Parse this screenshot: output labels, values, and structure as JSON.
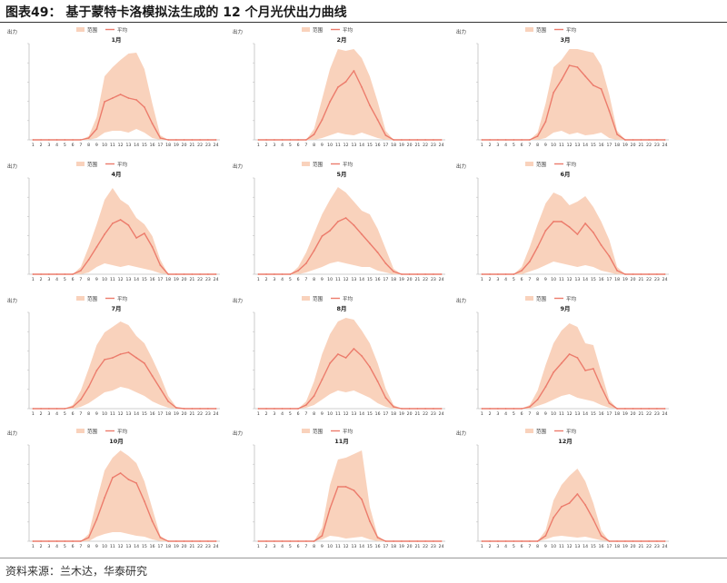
{
  "title": "图表49：  基于蒙特卡洛模拟法生成的 12 个月光伏出力曲线",
  "source": "资料来源：兰木达，华泰研究",
  "colors": {
    "band": "#f9d2bc",
    "line": "#ec7c6c",
    "axis": "#bfbfbf",
    "text": "#333333"
  },
  "chart_data": [
    {
      "type": "area",
      "title": "1月",
      "ylabel": "出力",
      "legend": [
        "范围",
        "平均"
      ],
      "legend_position": "top",
      "x": [
        1,
        2,
        3,
        4,
        5,
        6,
        7,
        8,
        9,
        10,
        11,
        12,
        13,
        14,
        15,
        16,
        17,
        18,
        19,
        20,
        21,
        22,
        23,
        24
      ],
      "mean": [
        0,
        0,
        0,
        0,
        0,
        0,
        0,
        0.02,
        0.12,
        0.42,
        0.46,
        0.5,
        0.46,
        0.44,
        0.36,
        0.18,
        0.02,
        0,
        0,
        0,
        0,
        0,
        0,
        0
      ],
      "upper": [
        0,
        0,
        0,
        0,
        0,
        0,
        0,
        0.04,
        0.25,
        0.7,
        0.8,
        0.88,
        0.95,
        0.96,
        0.78,
        0.4,
        0.05,
        0,
        0,
        0,
        0,
        0,
        0,
        0
      ],
      "lower": [
        0,
        0,
        0,
        0,
        0,
        0,
        0,
        0,
        0.02,
        0.08,
        0.1,
        0.1,
        0.08,
        0.12,
        0.08,
        0.02,
        0,
        0,
        0,
        0,
        0,
        0,
        0,
        0
      ]
    },
    {
      "type": "area",
      "title": "2月",
      "ylabel": "出力",
      "legend": [
        "范围",
        "平均"
      ],
      "legend_position": "top",
      "x": [
        1,
        2,
        3,
        4,
        5,
        6,
        7,
        8,
        9,
        10,
        11,
        12,
        13,
        14,
        15,
        16,
        17,
        18,
        19,
        20,
        21,
        22,
        23,
        24
      ],
      "mean": [
        0,
        0,
        0,
        0,
        0,
        0,
        0,
        0.06,
        0.22,
        0.42,
        0.58,
        0.64,
        0.76,
        0.58,
        0.38,
        0.22,
        0.05,
        0,
        0,
        0,
        0,
        0,
        0,
        0
      ],
      "upper": [
        0,
        0,
        0,
        0,
        0,
        0,
        0,
        0.12,
        0.45,
        0.78,
        1.0,
        0.98,
        1.0,
        0.9,
        0.7,
        0.42,
        0.1,
        0,
        0,
        0,
        0,
        0,
        0,
        0
      ],
      "lower": [
        0,
        0,
        0,
        0,
        0,
        0,
        0,
        0,
        0.02,
        0.05,
        0.08,
        0.06,
        0.05,
        0.08,
        0.05,
        0.02,
        0,
        0,
        0,
        0,
        0,
        0,
        0,
        0
      ]
    },
    {
      "type": "area",
      "title": "3月",
      "ylabel": "出力",
      "legend": [
        "范围",
        "平均"
      ],
      "legend_position": "top",
      "x": [
        1,
        2,
        3,
        4,
        5,
        6,
        7,
        8,
        9,
        10,
        11,
        12,
        13,
        14,
        15,
        16,
        17,
        18,
        19,
        20,
        21,
        22,
        23,
        24
      ],
      "mean": [
        0,
        0,
        0,
        0,
        0,
        0,
        0,
        0.04,
        0.2,
        0.52,
        0.66,
        0.82,
        0.8,
        0.7,
        0.6,
        0.56,
        0.32,
        0.06,
        0,
        0,
        0,
        0,
        0,
        0
      ],
      "upper": [
        0,
        0,
        0,
        0,
        0,
        0,
        0,
        0.08,
        0.4,
        0.8,
        0.88,
        1.0,
        1.0,
        0.98,
        0.96,
        0.82,
        0.5,
        0.1,
        0,
        0,
        0,
        0,
        0,
        0
      ],
      "lower": [
        0,
        0,
        0,
        0,
        0,
        0,
        0,
        0,
        0.02,
        0.08,
        0.1,
        0.06,
        0.08,
        0.05,
        0.06,
        0.08,
        0.02,
        0,
        0,
        0,
        0,
        0,
        0,
        0
      ]
    },
    {
      "type": "area",
      "title": "4月",
      "ylabel": "出力",
      "legend": [
        "范围",
        "平均"
      ],
      "legend_position": "top",
      "x": [
        1,
        2,
        3,
        4,
        5,
        6,
        7,
        8,
        9,
        10,
        11,
        12,
        13,
        14,
        15,
        16,
        17,
        18,
        19,
        20,
        21,
        22,
        23,
        24
      ],
      "mean": [
        0,
        0,
        0,
        0,
        0,
        0,
        0.04,
        0.16,
        0.3,
        0.44,
        0.56,
        0.6,
        0.54,
        0.4,
        0.45,
        0.3,
        0.1,
        0,
        0,
        0,
        0,
        0,
        0,
        0
      ],
      "upper": [
        0,
        0,
        0,
        0,
        0,
        0,
        0.08,
        0.3,
        0.55,
        0.82,
        0.95,
        0.82,
        0.76,
        0.62,
        0.55,
        0.42,
        0.16,
        0,
        0,
        0,
        0,
        0,
        0,
        0
      ],
      "lower": [
        0,
        0,
        0,
        0,
        0,
        0,
        0,
        0.02,
        0.08,
        0.12,
        0.1,
        0.08,
        0.1,
        0.08,
        0.06,
        0.04,
        0.01,
        0,
        0,
        0,
        0,
        0,
        0,
        0
      ]
    },
    {
      "type": "area",
      "title": "5月",
      "ylabel": "出力",
      "legend": [
        "范围",
        "平均"
      ],
      "legend_position": "top",
      "x": [
        1,
        2,
        3,
        4,
        5,
        6,
        7,
        8,
        9,
        10,
        11,
        12,
        13,
        14,
        15,
        16,
        17,
        18,
        19,
        20,
        21,
        22,
        23,
        24
      ],
      "mean": [
        0,
        0,
        0,
        0,
        0,
        0.04,
        0.12,
        0.26,
        0.42,
        0.48,
        0.58,
        0.62,
        0.54,
        0.44,
        0.34,
        0.24,
        0.12,
        0.03,
        0,
        0,
        0,
        0,
        0,
        0
      ],
      "upper": [
        0,
        0,
        0,
        0,
        0,
        0.08,
        0.24,
        0.45,
        0.66,
        0.82,
        0.96,
        0.9,
        0.8,
        0.7,
        0.66,
        0.5,
        0.28,
        0.06,
        0,
        0,
        0,
        0,
        0,
        0
      ],
      "lower": [
        0,
        0,
        0,
        0,
        0,
        0,
        0.02,
        0.05,
        0.08,
        0.12,
        0.14,
        0.12,
        0.1,
        0.08,
        0.08,
        0.04,
        0.02,
        0,
        0,
        0,
        0,
        0,
        0,
        0
      ]
    },
    {
      "type": "area",
      "title": "6月",
      "ylabel": "出力",
      "legend": [
        "范围",
        "平均"
      ],
      "legend_position": "top",
      "x": [
        1,
        2,
        3,
        4,
        5,
        6,
        7,
        8,
        9,
        10,
        11,
        12,
        13,
        14,
        15,
        16,
        17,
        18,
        19,
        20,
        21,
        22,
        23,
        24
      ],
      "mean": [
        0,
        0,
        0,
        0,
        0,
        0.04,
        0.14,
        0.3,
        0.48,
        0.58,
        0.58,
        0.52,
        0.44,
        0.56,
        0.46,
        0.32,
        0.2,
        0.04,
        0,
        0,
        0,
        0,
        0,
        0
      ],
      "upper": [
        0,
        0,
        0,
        0,
        0,
        0.08,
        0.3,
        0.55,
        0.78,
        0.9,
        0.86,
        0.76,
        0.8,
        0.86,
        0.74,
        0.58,
        0.38,
        0.08,
        0,
        0,
        0,
        0,
        0,
        0
      ],
      "lower": [
        0,
        0,
        0,
        0,
        0,
        0,
        0.03,
        0.06,
        0.1,
        0.14,
        0.12,
        0.1,
        0.08,
        0.1,
        0.08,
        0.04,
        0.02,
        0,
        0,
        0,
        0,
        0,
        0,
        0
      ]
    },
    {
      "type": "area",
      "title": "7月",
      "ylabel": "出力",
      "legend": [
        "范围",
        "平均"
      ],
      "legend_position": "top",
      "x": [
        1,
        2,
        3,
        4,
        5,
        6,
        7,
        8,
        9,
        10,
        11,
        12,
        13,
        14,
        15,
        16,
        17,
        18,
        19,
        20,
        21,
        22,
        23,
        24
      ],
      "mean": [
        0,
        0,
        0,
        0,
        0,
        0.02,
        0.1,
        0.24,
        0.42,
        0.54,
        0.56,
        0.6,
        0.62,
        0.56,
        0.5,
        0.36,
        0.22,
        0.08,
        0.01,
        0,
        0,
        0,
        0,
        0
      ],
      "upper": [
        0,
        0,
        0,
        0,
        0,
        0.04,
        0.2,
        0.44,
        0.7,
        0.84,
        0.9,
        0.96,
        0.92,
        0.8,
        0.72,
        0.55,
        0.36,
        0.14,
        0.02,
        0,
        0,
        0,
        0,
        0
      ],
      "lower": [
        0,
        0,
        0,
        0,
        0,
        0,
        0.02,
        0.06,
        0.12,
        0.18,
        0.2,
        0.24,
        0.22,
        0.18,
        0.14,
        0.08,
        0.04,
        0.01,
        0,
        0,
        0,
        0,
        0,
        0
      ]
    },
    {
      "type": "area",
      "title": "8月",
      "ylabel": "出力",
      "legend": [
        "范围",
        "平均"
      ],
      "legend_position": "top",
      "x": [
        1,
        2,
        3,
        4,
        5,
        6,
        7,
        8,
        9,
        10,
        11,
        12,
        13,
        14,
        15,
        16,
        17,
        18,
        19,
        20,
        21,
        22,
        23,
        24
      ],
      "mean": [
        0,
        0,
        0,
        0,
        0,
        0,
        0.04,
        0.14,
        0.32,
        0.5,
        0.6,
        0.56,
        0.66,
        0.58,
        0.46,
        0.3,
        0.12,
        0.02,
        0,
        0,
        0,
        0,
        0,
        0
      ],
      "upper": [
        0,
        0,
        0,
        0,
        0,
        0,
        0.08,
        0.3,
        0.6,
        0.82,
        0.96,
        1.0,
        0.98,
        0.86,
        0.72,
        0.5,
        0.22,
        0.04,
        0,
        0,
        0,
        0,
        0,
        0
      ],
      "lower": [
        0,
        0,
        0,
        0,
        0,
        0,
        0.01,
        0.04,
        0.1,
        0.16,
        0.2,
        0.18,
        0.2,
        0.16,
        0.12,
        0.06,
        0.02,
        0,
        0,
        0,
        0,
        0,
        0,
        0
      ]
    },
    {
      "type": "area",
      "title": "9月",
      "ylabel": "出力",
      "legend": [
        "范围",
        "平均"
      ],
      "legend_position": "top",
      "x": [
        1,
        2,
        3,
        4,
        5,
        6,
        7,
        8,
        9,
        10,
        11,
        12,
        13,
        14,
        15,
        16,
        17,
        18,
        19,
        20,
        21,
        22,
        23,
        24
      ],
      "mean": [
        0,
        0,
        0,
        0,
        0,
        0,
        0.02,
        0.1,
        0.24,
        0.4,
        0.5,
        0.6,
        0.56,
        0.42,
        0.44,
        0.24,
        0.06,
        0,
        0,
        0,
        0,
        0,
        0,
        0
      ],
      "upper": [
        0,
        0,
        0,
        0,
        0,
        0,
        0.04,
        0.2,
        0.48,
        0.72,
        0.86,
        0.94,
        0.9,
        0.72,
        0.7,
        0.4,
        0.1,
        0,
        0,
        0,
        0,
        0,
        0,
        0
      ],
      "lower": [
        0,
        0,
        0,
        0,
        0,
        0,
        0,
        0.03,
        0.06,
        0.1,
        0.14,
        0.16,
        0.12,
        0.1,
        0.08,
        0.04,
        0.01,
        0,
        0,
        0,
        0,
        0,
        0,
        0
      ]
    },
    {
      "type": "area",
      "title": "10月",
      "ylabel": "出力",
      "legend": [
        "范围",
        "平均"
      ],
      "legend_position": "top",
      "x": [
        1,
        2,
        3,
        4,
        5,
        6,
        7,
        8,
        9,
        10,
        11,
        12,
        13,
        14,
        15,
        16,
        17,
        18,
        19,
        20,
        21,
        22,
        23,
        24
      ],
      "mean": [
        0,
        0,
        0,
        0,
        0,
        0,
        0,
        0.04,
        0.24,
        0.48,
        0.7,
        0.75,
        0.68,
        0.64,
        0.44,
        0.22,
        0.04,
        0,
        0,
        0,
        0,
        0,
        0,
        0
      ],
      "upper": [
        0,
        0,
        0,
        0,
        0,
        0,
        0,
        0.08,
        0.45,
        0.78,
        0.92,
        1.0,
        0.94,
        0.86,
        0.66,
        0.36,
        0.06,
        0,
        0,
        0,
        0,
        0,
        0,
        0
      ],
      "lower": [
        0,
        0,
        0,
        0,
        0,
        0,
        0,
        0,
        0.05,
        0.08,
        0.1,
        0.1,
        0.08,
        0.06,
        0.05,
        0.02,
        0,
        0,
        0,
        0,
        0,
        0,
        0,
        0
      ]
    },
    {
      "type": "area",
      "title": "11月",
      "ylabel": "出力",
      "legend": [
        "范围",
        "平均"
      ],
      "legend_position": "top",
      "x": [
        1,
        2,
        3,
        4,
        5,
        6,
        7,
        8,
        9,
        10,
        11,
        12,
        13,
        14,
        15,
        16,
        17,
        18,
        19,
        20,
        21,
        22,
        23,
        24
      ],
      "mean": [
        0,
        0,
        0,
        0,
        0,
        0,
        0,
        0,
        0.06,
        0.36,
        0.6,
        0.6,
        0.56,
        0.46,
        0.22,
        0.04,
        0,
        0,
        0,
        0,
        0,
        0,
        0,
        0
      ],
      "upper": [
        0,
        0,
        0,
        0,
        0,
        0,
        0,
        0,
        0.15,
        0.62,
        0.9,
        0.92,
        0.96,
        1.0,
        0.38,
        0.06,
        0,
        0,
        0,
        0,
        0,
        0,
        0,
        0
      ],
      "lower": [
        0,
        0,
        0,
        0,
        0,
        0,
        0,
        0,
        0.02,
        0.06,
        0.05,
        0.03,
        0.04,
        0.05,
        0.02,
        0,
        0,
        0,
        0,
        0,
        0,
        0,
        0,
        0
      ]
    },
    {
      "type": "area",
      "title": "12月",
      "ylabel": "出力",
      "legend": [
        "范围",
        "平均"
      ],
      "legend_position": "top",
      "x": [
        1,
        2,
        3,
        4,
        5,
        6,
        7,
        8,
        9,
        10,
        11,
        12,
        13,
        14,
        15,
        16,
        17,
        18,
        19,
        20,
        21,
        22,
        23,
        24
      ],
      "mean": [
        0,
        0,
        0,
        0,
        0,
        0,
        0,
        0,
        0.06,
        0.26,
        0.38,
        0.42,
        0.52,
        0.4,
        0.24,
        0.06,
        0,
        0,
        0,
        0,
        0,
        0,
        0,
        0
      ],
      "upper": [
        0,
        0,
        0,
        0,
        0,
        0,
        0,
        0,
        0.12,
        0.45,
        0.62,
        0.72,
        0.8,
        0.66,
        0.42,
        0.12,
        0,
        0,
        0,
        0,
        0,
        0,
        0,
        0
      ],
      "lower": [
        0,
        0,
        0,
        0,
        0,
        0,
        0,
        0,
        0.02,
        0.05,
        0.06,
        0.05,
        0.04,
        0.05,
        0.03,
        0.01,
        0,
        0,
        0,
        0,
        0,
        0,
        0,
        0
      ]
    }
  ]
}
